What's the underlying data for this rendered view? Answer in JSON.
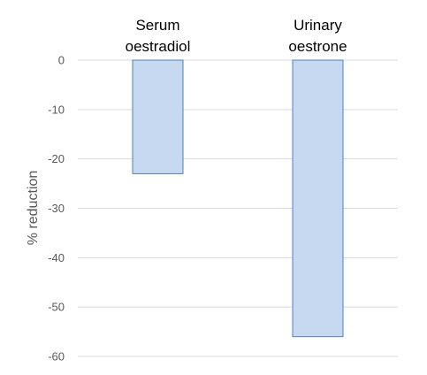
{
  "chart_data": {
    "type": "bar",
    "categories": [
      [
        "Serum",
        "oestradiol"
      ],
      [
        "Urinary",
        "oestrone"
      ]
    ],
    "values": [
      -23,
      -56
    ],
    "xlabel": "",
    "ylabel": "% reduction",
    "ylim": [
      -60,
      0
    ],
    "yticks": [
      0,
      -10,
      -20,
      -30,
      -40,
      -50,
      -60
    ],
    "grid": true,
    "legend": "none",
    "category_labels_position": "top",
    "colors": {
      "bar_fill": "#c6d9f1",
      "bar_stroke": "#4f81bd",
      "grid": "#d9d9d9",
      "tick_text": "#595959",
      "category_text": "#000000"
    }
  }
}
